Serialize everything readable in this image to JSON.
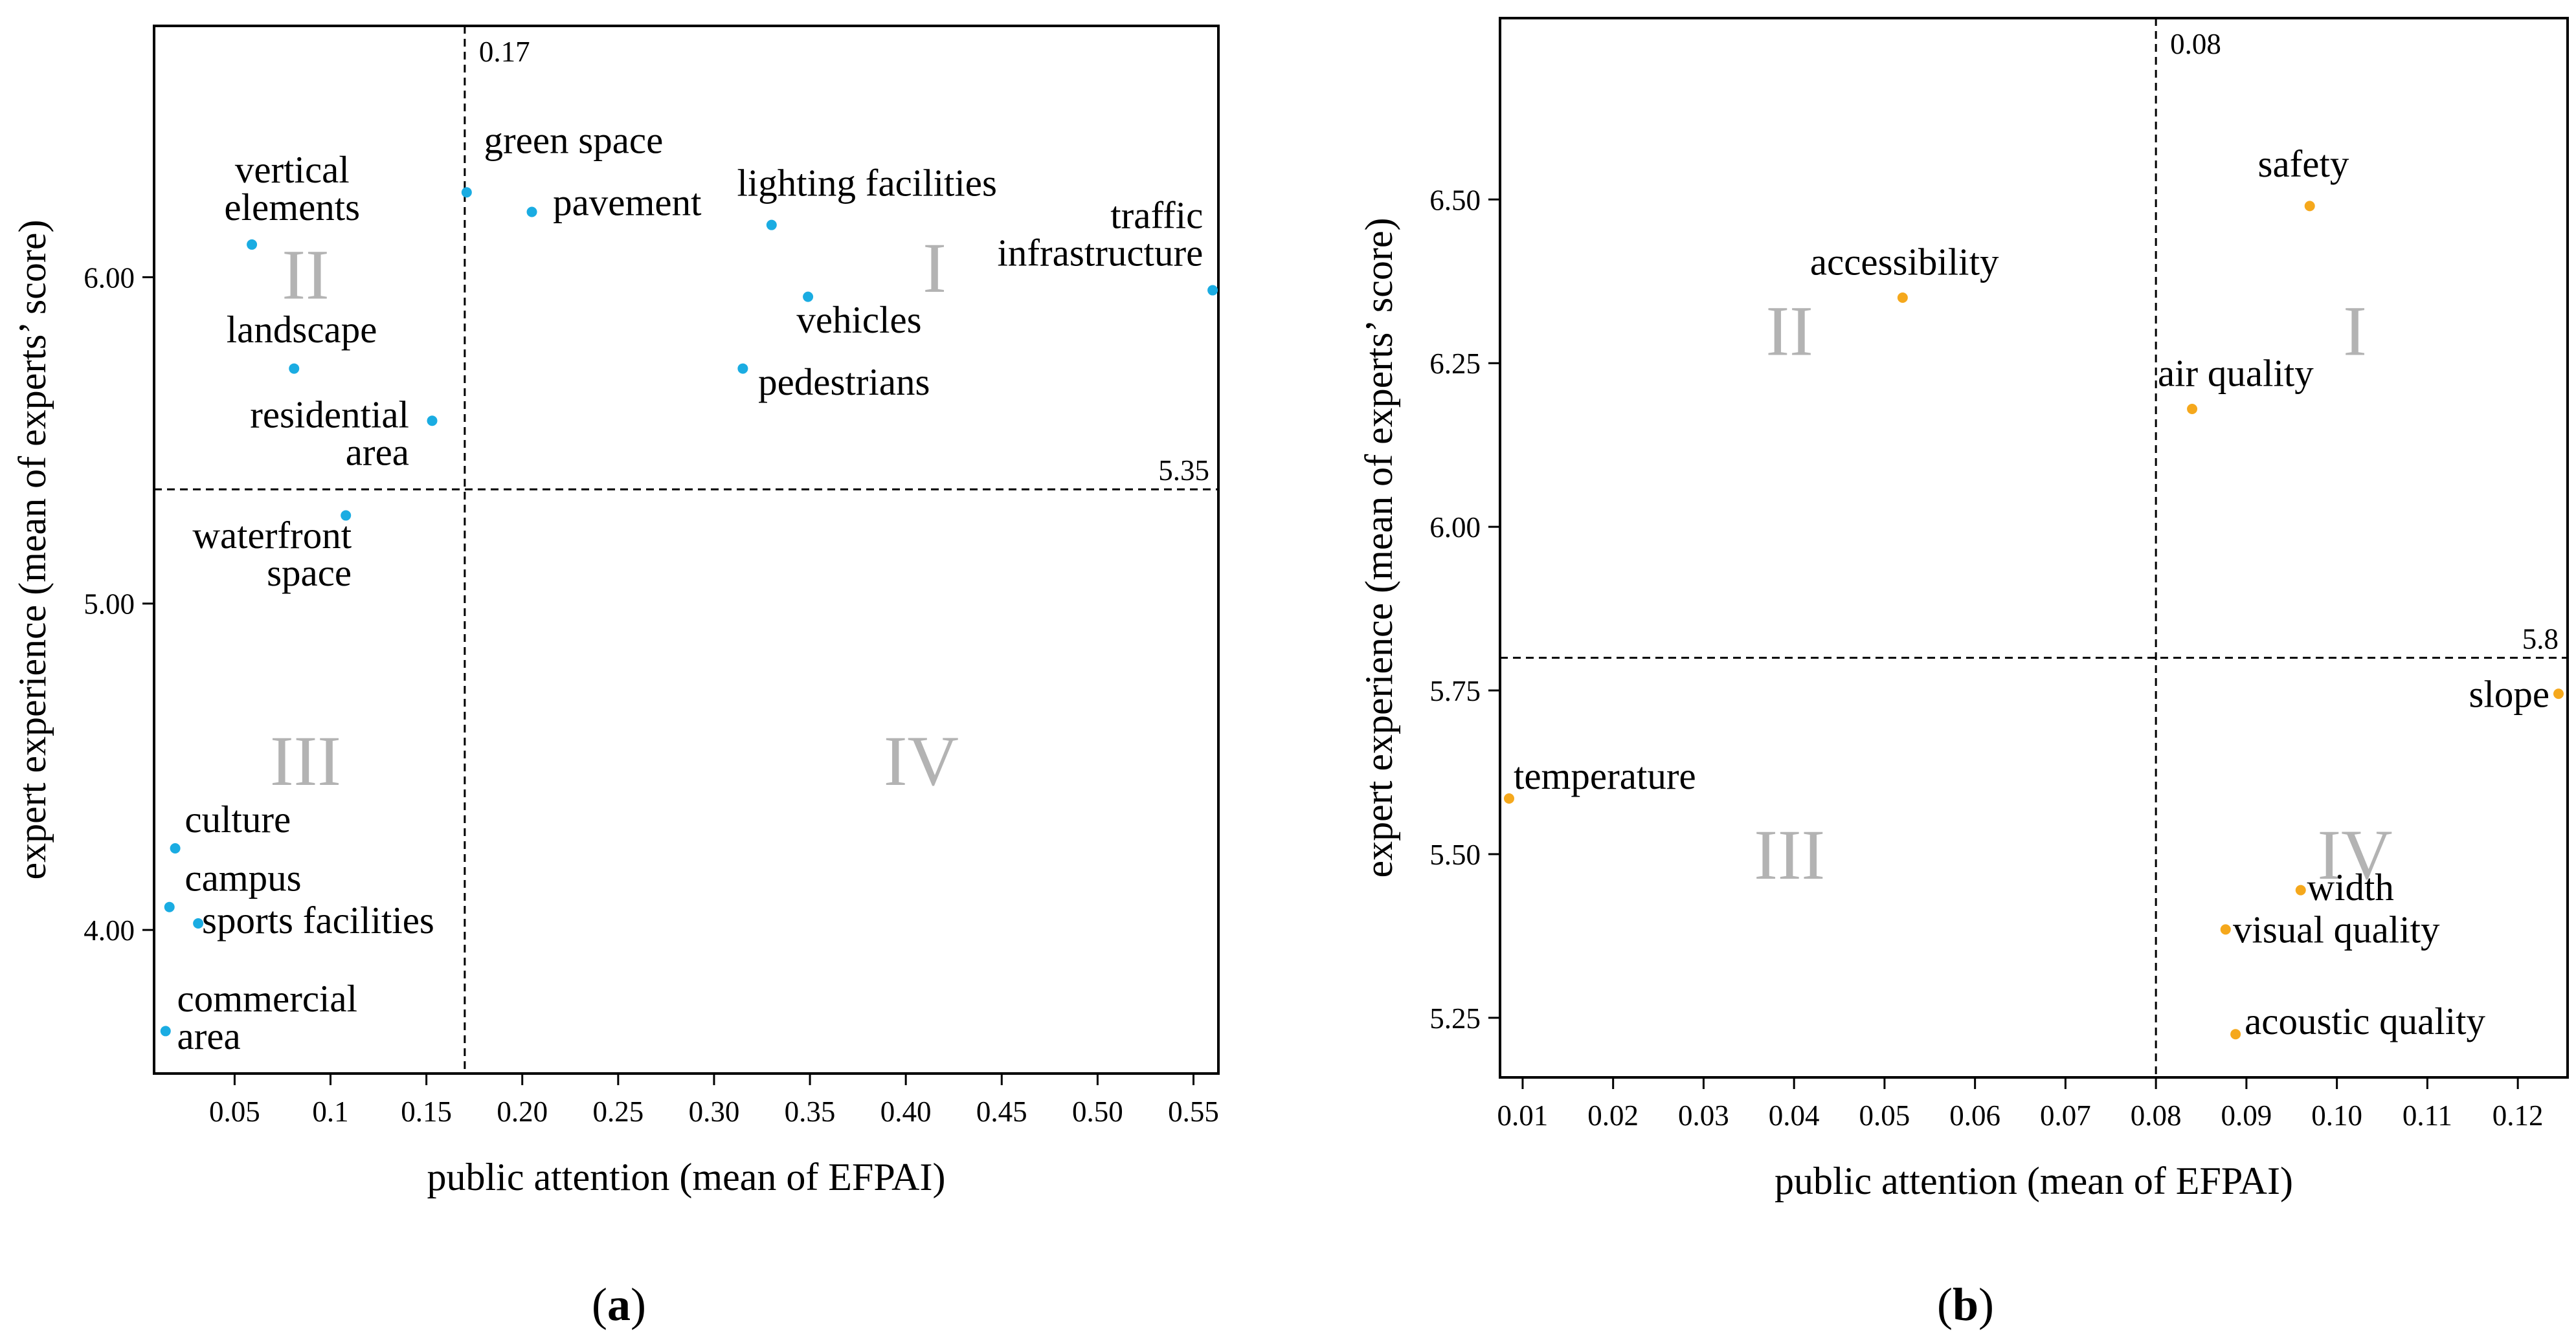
{
  "chart_data": [
    {
      "type": "scatter",
      "panel": "a",
      "caption_open": "(",
      "caption_letter": "a",
      "caption_close": ")",
      "xlabel": "public attention (mean of EFPAI)",
      "ylabel": "expert experience (mean of experts’ score)",
      "xlim": [
        0.008,
        0.563
      ],
      "ylim": [
        3.56,
        6.77
      ],
      "xticks": [
        0.05,
        0.1,
        0.15,
        0.2,
        0.25,
        0.3,
        0.35,
        0.4,
        0.45,
        0.5,
        0.55
      ],
      "xtick_labels": [
        "0.05",
        "0.1",
        "0.15",
        "0.20",
        "0.25",
        "0.30",
        "0.35",
        "0.40",
        "0.45",
        "0.50",
        "0.55"
      ],
      "yticks": [
        4.0,
        5.0,
        6.0
      ],
      "ytick_labels": [
        "4.00",
        "5.00",
        "6.00"
      ],
      "threshold_x": 0.17,
      "threshold_x_label": "0.17",
      "threshold_y": 5.35,
      "threshold_y_label": "5.35",
      "point_color": "#1aace2",
      "quadrants": [
        {
          "label": "I",
          "x": 0.415,
          "y": 6.03
        },
        {
          "label": "II",
          "x": 0.087,
          "y": 6.01
        },
        {
          "label": "III",
          "x": 0.087,
          "y": 4.52
        },
        {
          "label": "IV",
          "x": 0.408,
          "y": 4.52
        }
      ],
      "points": [
        {
          "name": "green space",
          "x": 0.171,
          "y": 6.26,
          "lines": [
            "green space"
          ],
          "anchor": "start",
          "lx": 0.18,
          "ly": 6.38
        },
        {
          "name": "pavement",
          "x": 0.205,
          "y": 6.2,
          "lines": [
            "pavement"
          ],
          "anchor": "start",
          "lx": 0.216,
          "ly": 6.19
        },
        {
          "name": "lighting facilities",
          "x": 0.33,
          "y": 6.16,
          "lines": [
            "lighting facilities"
          ],
          "anchor": "start",
          "lx": 0.312,
          "ly": 6.25
        },
        {
          "name": "vehicles",
          "x": 0.349,
          "y": 5.94,
          "lines": [
            "vehicles"
          ],
          "anchor": "start",
          "lx": 0.343,
          "ly": 5.83
        },
        {
          "name": "pedestrians",
          "x": 0.315,
          "y": 5.72,
          "lines": [
            "pedestrians"
          ],
          "anchor": "start",
          "lx": 0.323,
          "ly": 5.64
        },
        {
          "name": "traffic infrastructure",
          "x": 0.56,
          "y": 5.96,
          "lines": [
            "traffic",
            "infrastructure"
          ],
          "anchor": "end",
          "lx": 0.555,
          "ly": 6.15
        },
        {
          "name": "vertical elements",
          "x": 0.059,
          "y": 6.1,
          "lines": [
            "vertical",
            "elements"
          ],
          "anchor": "middle",
          "lx": 0.08,
          "ly": 6.29
        },
        {
          "name": "landscape",
          "x": 0.081,
          "y": 5.72,
          "lines": [
            "landscape"
          ],
          "anchor": "middle",
          "lx": 0.085,
          "ly": 5.8
        },
        {
          "name": "residential area",
          "x": 0.153,
          "y": 5.56,
          "lines": [
            "residential",
            "area"
          ],
          "anchor": "end",
          "lx": 0.141,
          "ly": 5.54
        },
        {
          "name": "waterfront space",
          "x": 0.108,
          "y": 5.27,
          "lines": [
            "waterfront",
            "space"
          ],
          "anchor": "end",
          "lx": 0.111,
          "ly": 5.17
        },
        {
          "name": "culture",
          "x": 0.019,
          "y": 4.25,
          "lines": [
            "culture"
          ],
          "anchor": "start",
          "lx": 0.024,
          "ly": 4.3
        },
        {
          "name": "campus",
          "x": 0.016,
          "y": 4.07,
          "lines": [
            "campus"
          ],
          "anchor": "start",
          "lx": 0.024,
          "ly": 4.12
        },
        {
          "name": "sports facilities",
          "x": 0.031,
          "y": 4.02,
          "lines": [
            "sports facilities"
          ],
          "anchor": "start",
          "lx": 0.033,
          "ly": 3.99
        },
        {
          "name": "commercial area",
          "x": 0.014,
          "y": 3.69,
          "lines": [
            "commercial",
            "area"
          ],
          "anchor": "start",
          "lx": 0.02,
          "ly": 3.75
        }
      ]
    },
    {
      "type": "scatter",
      "panel": "b",
      "caption_open": "(",
      "caption_letter": "b",
      "caption_close": ")",
      "xlabel": "public attention (mean of EFPAI)",
      "ylabel": "expert experience (mean of experts’ score)",
      "xlim": [
        0.0075,
        0.1255
      ],
      "ylim": [
        5.159,
        6.777
      ],
      "xticks": [
        0.01,
        0.02,
        0.03,
        0.04,
        0.05,
        0.06,
        0.07,
        0.08,
        0.09,
        0.1,
        0.11,
        0.12
      ],
      "xtick_labels": [
        "0.01",
        "0.02",
        "0.03",
        "0.04",
        "0.05",
        "0.06",
        "0.07",
        "0.08",
        "0.09",
        "0.10",
        "0.11",
        "0.12"
      ],
      "yticks": [
        5.25,
        5.5,
        5.75,
        6.0,
        6.25,
        6.5
      ],
      "ytick_labels": [
        "5.25",
        "5.50",
        "5.75",
        "6.00",
        "6.25",
        "6.50"
      ],
      "threshold_x": 0.08,
      "threshold_x_label": "0.08",
      "threshold_y": 5.8,
      "threshold_y_label": "5.8",
      "point_color": "#f5a81c",
      "quadrants": [
        {
          "label": "I",
          "x": 0.102,
          "y": 6.3
        },
        {
          "label": "II",
          "x": 0.0395,
          "y": 6.3
        },
        {
          "label": "III",
          "x": 0.0395,
          "y": 5.5
        },
        {
          "label": "IV",
          "x": 0.102,
          "y": 5.5
        }
      ],
      "points": [
        {
          "name": "safety",
          "x": 0.097,
          "y": 6.49,
          "lines": [
            "safety"
          ],
          "anchor": "middle",
          "lx": 0.0963,
          "ly": 6.535
        },
        {
          "name": "accessibility",
          "x": 0.052,
          "y": 6.35,
          "lines": [
            "accessibility"
          ],
          "anchor": "middle",
          "lx": 0.0522,
          "ly": 6.385
        },
        {
          "name": "air quality",
          "x": 0.084,
          "y": 6.18,
          "lines": [
            "air quality"
          ],
          "anchor": "start",
          "lx": 0.0802,
          "ly": 6.215
        },
        {
          "name": "slope",
          "x": 0.1245,
          "y": 5.745,
          "lines": [
            "slope"
          ],
          "anchor": "end",
          "lx": 0.1235,
          "ly": 5.725
        },
        {
          "name": "temperature",
          "x": 0.0085,
          "y": 5.585,
          "lines": [
            "temperature"
          ],
          "anchor": "start",
          "lx": 0.009,
          "ly": 5.6
        },
        {
          "name": "width",
          "x": 0.096,
          "y": 5.445,
          "lines": [
            "width"
          ],
          "anchor": "start",
          "lx": 0.0967,
          "ly": 5.43
        },
        {
          "name": "visual quality",
          "x": 0.0877,
          "y": 5.385,
          "lines": [
            "visual quality"
          ],
          "anchor": "start",
          "lx": 0.0885,
          "ly": 5.365
        },
        {
          "name": "acoustic quality",
          "x": 0.0888,
          "y": 5.225,
          "lines": [
            "acoustic quality"
          ],
          "anchor": "start",
          "lx": 0.0898,
          "ly": 5.225
        }
      ]
    }
  ]
}
